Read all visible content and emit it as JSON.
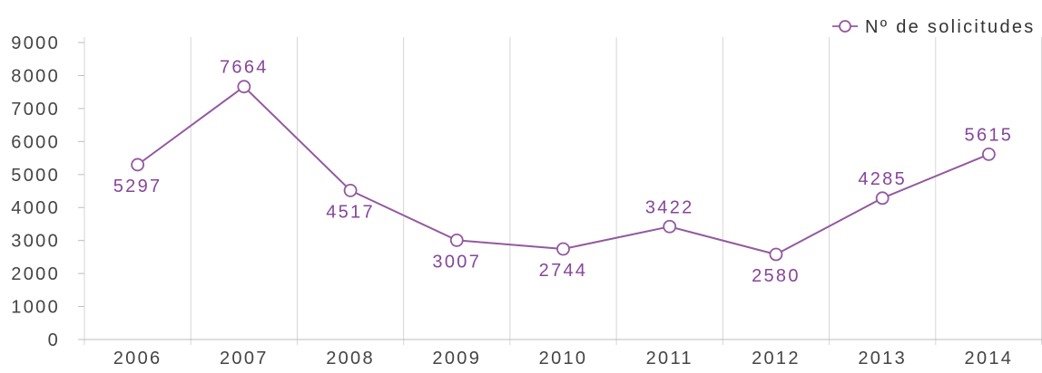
{
  "chart_data": {
    "type": "line",
    "categories": [
      "2006",
      "2007",
      "2008",
      "2009",
      "2010",
      "2011",
      "2012",
      "2013",
      "2014"
    ],
    "series": [
      {
        "name": "Nº de solicitudes",
        "values": [
          5297,
          7664,
          4517,
          3007,
          2744,
          3422,
          2580,
          4285,
          5615
        ],
        "color": "#93599f",
        "label_color": "#86469a",
        "marker": "open-circle"
      }
    ],
    "ylim": [
      0,
      9000
    ],
    "yticks": [
      0,
      1000,
      2000,
      3000,
      4000,
      5000,
      6000,
      7000,
      8000,
      9000
    ],
    "grid": {
      "vertical": true,
      "horizontal": false
    },
    "legend": "top-right",
    "data_labels": true
  },
  "colors": {
    "background": "#ffffff",
    "axis_text": "#444444",
    "legend_text": "#333333",
    "grid": "#d6d6d6",
    "axis_line": "#bdbdbd"
  }
}
